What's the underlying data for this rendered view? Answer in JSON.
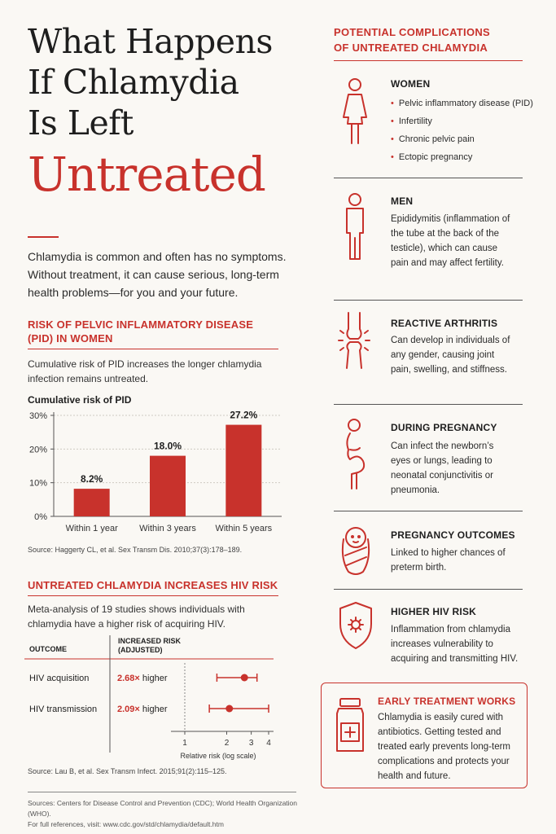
{
  "title": {
    "line1": "What Happens",
    "line2": "If Chlamydia",
    "line3": "Is Left",
    "big": "Untreated"
  },
  "intro": "Chlamydia is common and often has no symptoms. Without treatment, it can cause serious, long-term health problems—for you and your future.",
  "pid": {
    "heading": "RISK OF PELVIC INFLAMMATORY DISEASE (PID) IN WOMEN",
    "text": "Cumulative risk of PID increases the longer chlamydia infection remains untreated.",
    "chart_title": "Cumulative risk of PID",
    "source": "Source: Haggerty CL, et al. Sex Transm Dis. 2010;37(3):178–189."
  },
  "hiv": {
    "heading": "UNTREATED CHLAMYDIA INCREASES HIV RISK",
    "text": "Meta-analysis of 19 studies shows individuals with chlamydia have a higher risk of acquiring HIV.",
    "col_outcome": "OUTCOME",
    "col_risk_1": "INCREASED RISK",
    "col_risk_2": "(ADJUSTED)",
    "rows": [
      {
        "outcome": "HIV acquisition",
        "value": "2.68×",
        "suffix": " higher"
      },
      {
        "outcome": "HIV transmission",
        "value": "2.09×",
        "suffix": " higher"
      }
    ],
    "axis_label": "Relative risk (log scale)",
    "source": "Source: Lau B, et al. Sex Transm Infect. 2015;91(2):115–125."
  },
  "chart_data": [
    {
      "type": "bar",
      "title": "Cumulative risk of PID",
      "categories": [
        "Within 1 year",
        "Within 3 years",
        "Within 5 years"
      ],
      "values": [
        8.2,
        18.0,
        27.2
      ],
      "value_labels": [
        "8.2%",
        "18.0%",
        "27.2%"
      ],
      "yticks": [
        "0%",
        "10%",
        "20%",
        "30%"
      ],
      "ylim": [
        0,
        30
      ],
      "bar_color": "#c8322c",
      "grid": true
    },
    {
      "type": "scatter",
      "title": "",
      "xlabel": "Relative risk (log scale)",
      "xscale": "log",
      "xlim": [
        1,
        4
      ],
      "xticks": [
        "1",
        "2",
        "3",
        "4"
      ],
      "series": [
        {
          "name": "HIV acquisition",
          "estimate": 2.68,
          "ci": [
            1.7,
            3.3
          ]
        },
        {
          "name": "HIV transmission",
          "estimate": 2.09,
          "ci": [
            1.5,
            4.0
          ]
        }
      ]
    }
  ],
  "complications": {
    "heading_1": "POTENTIAL COMPLICATIONS",
    "heading_2": "OF UNTREATED CHLAMYDIA",
    "women": {
      "title": "WOMEN",
      "items": [
        "Pelvic inflammatory disease (PID)",
        "Infertility",
        "Chronic pelvic pain",
        "Ectopic pregnancy"
      ]
    },
    "men": {
      "title": "MEN",
      "text": "Epididymitis (inflammation of the tube at the back of the testicle), which can cause pain and may affect fertility."
    },
    "arthritis": {
      "title": "REACTIVE ARTHRITIS",
      "text": "Can develop in individuals of any gender, causing joint pain, swelling, and stiffness."
    },
    "pregnancy": {
      "title": "DURING PREGNANCY",
      "text": "Can infect the newborn’s eyes or lungs, leading to neonatal conjunctivitis or pneumonia."
    },
    "outcomes": {
      "title": "PREGNANCY OUTCOMES",
      "text": "Linked to higher chances of preterm birth."
    },
    "hivrisk": {
      "title": "HIGHER HIV RISK",
      "text": "Inflammation from chlamydia increases vulnerability to acquiring and transmitting HIV."
    },
    "early": {
      "title": "EARLY TREATMENT WORKS",
      "text": "Chlamydia is easily cured with antibiotics. Getting tested and treated early prevents long-term complications and protects your health and future."
    }
  },
  "footer": {
    "line1": "Sources: Centers for Disease Control and Prevention (CDC); World Health Organization (WHO).",
    "line2": "For full references, visit: www.cdc.gov/std/chlamydia/default.htm"
  },
  "colors": {
    "accent": "#c8322c",
    "background": "#faf8f4",
    "text": "#2b2b2b"
  },
  "icons": [
    "woman-icon",
    "man-icon",
    "knee-joint-icon",
    "pregnant-woman-icon",
    "swaddled-baby-icon",
    "virus-shield-icon",
    "medicine-bottle-icon"
  ]
}
